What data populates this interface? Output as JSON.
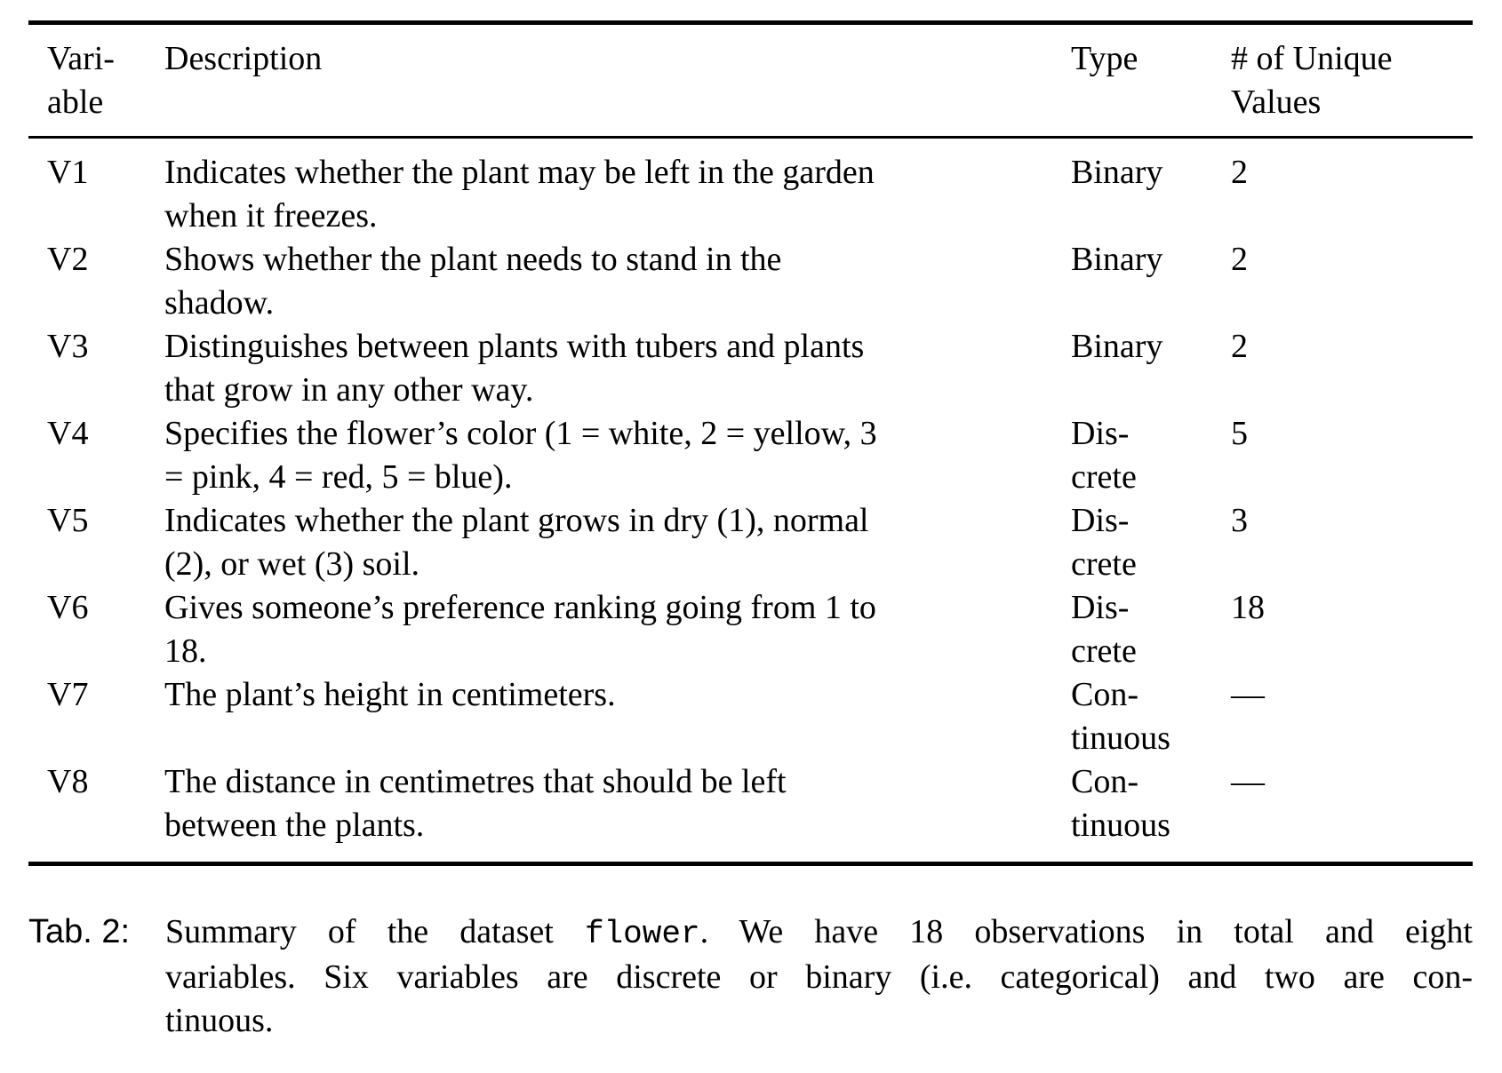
{
  "table": {
    "columns": [
      {
        "label": "Vari-\nable"
      },
      {
        "label": "Description"
      },
      {
        "label": "Type"
      },
      {
        "label": "# of Unique\nValues"
      }
    ],
    "rows": [
      {
        "variable": "V1",
        "description": "Indicates whether the plant may be left in the garden\nwhen it freezes.",
        "type": "Binary",
        "unique_values": "2"
      },
      {
        "variable": "V2",
        "description": "Shows whether the plant needs to stand in the\nshadow.",
        "type": "Binary",
        "unique_values": "2"
      },
      {
        "variable": "V3",
        "description": "Distinguishes between plants with tubers and plants\nthat grow in any other way.",
        "type": "Binary",
        "unique_values": "2"
      },
      {
        "variable": "V4",
        "description": "Specifies the flower’s color (1 = white, 2 = yellow, 3\n= pink, 4 = red, 5 = blue).",
        "type": "Dis-\ncrete",
        "unique_values": "5"
      },
      {
        "variable": "V5",
        "description": "Indicates whether the plant grows in dry (1), normal\n(2), or wet (3) soil.",
        "type": "Dis-\ncrete",
        "unique_values": "3"
      },
      {
        "variable": "V6",
        "description": "Gives someone’s preference ranking going from 1 to\n18.",
        "type": "Dis-\ncrete",
        "unique_values": "18"
      },
      {
        "variable": "V7",
        "description": "The plant’s height in centimeters.",
        "type": "Con-\ntinuous",
        "unique_values": "—"
      },
      {
        "variable": "V8",
        "description": "The distance in centimetres that should be left\nbetween the plants.",
        "type": "Con-\ntinuous",
        "unique_values": "—"
      }
    ]
  },
  "caption": {
    "label": "Tab. 2:",
    "line1_before_code": "Summary of the dataset ",
    "line1_code": "flower",
    "line1_after_code": ". We have 18 observations in total and eight",
    "line2": "variables. Six variables are discrete or binary (i.e. categorical) and two are con-",
    "line3": "tinuous."
  },
  "colors": {
    "text": "#000000",
    "background": "#ffffff",
    "rule": "#000000"
  }
}
